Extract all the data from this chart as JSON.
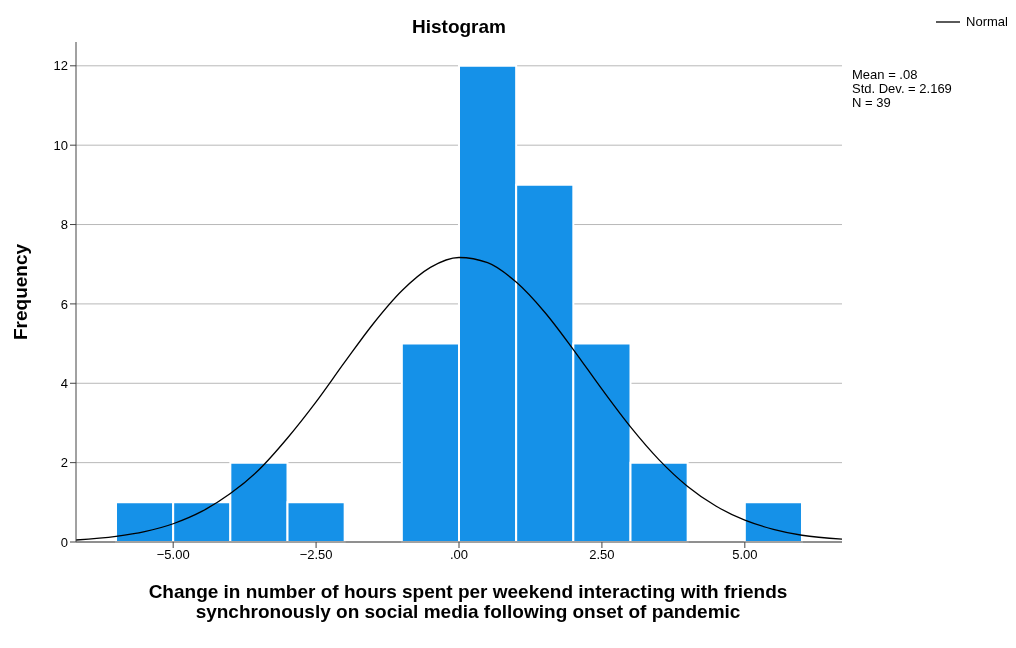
{
  "chart_data": {
    "type": "histogram",
    "title": "Histogram",
    "xlabel": "Change in number of hours spent per weekend interacting with friends synchronously on social media following onset of pandemic",
    "ylabel": "Frequency",
    "bins": [
      -6,
      -5,
      -4,
      -3,
      -2,
      -1,
      0,
      1,
      2,
      3,
      4,
      5,
      6
    ],
    "values": [
      1,
      1,
      2,
      1,
      0,
      5,
      12,
      9,
      5,
      2,
      0,
      1
    ],
    "color": "#1591e8",
    "series": [
      {
        "type": "line",
        "name": "Normal",
        "color": "#000000",
        "x": [
          -6.7,
          -6,
          -5.5,
          -5,
          -4.5,
          -4,
          -3.5,
          -3,
          -2.5,
          -2,
          -1.5,
          -1,
          -0.5,
          0,
          0.5,
          1,
          1.5,
          2,
          2.5,
          3,
          3.5,
          4,
          4.5,
          5,
          5.5,
          6,
          6.7
        ],
        "values": [
          0.05,
          0.14,
          0.26,
          0.46,
          0.77,
          1.22,
          1.82,
          2.62,
          3.53,
          4.53,
          5.5,
          6.33,
          6.92,
          7.17,
          7.04,
          6.55,
          5.79,
          4.85,
          3.85,
          2.9,
          2.07,
          1.4,
          0.9,
          0.55,
          0.32,
          0.17,
          0.07
        ]
      }
    ],
    "xlim": [
      -6.7,
      6.7
    ],
    "xticks": [
      {
        "value": -5,
        "label": "−5.00"
      },
      {
        "value": -2.5,
        "label": "−2.50"
      },
      {
        "value": 0,
        "label": ".00"
      },
      {
        "value": 2.5,
        "label": "2.50"
      },
      {
        "value": 5,
        "label": "5.00"
      }
    ],
    "ylim": [
      0,
      12.6
    ],
    "yticks": [
      0,
      2,
      4,
      6,
      8,
      10,
      12
    ],
    "grid": "y",
    "legend": "top right",
    "annotations": [
      "Mean = .08",
      "Std. Dev. = 2.169",
      "N = 39"
    ]
  }
}
